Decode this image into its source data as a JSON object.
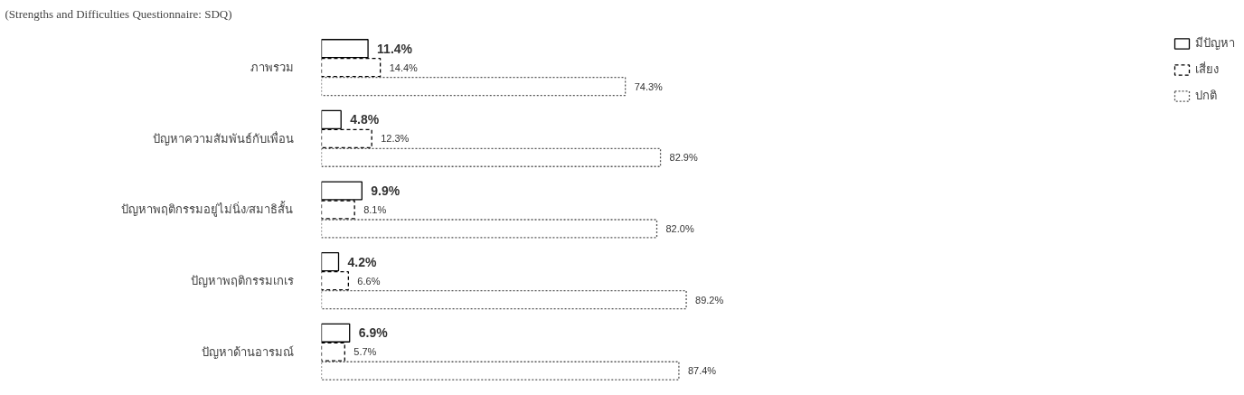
{
  "chart_data": {
    "type": "bar",
    "orientation": "horizontal",
    "title": "(Strengths and Difficulties  Questionnaire: SDQ)",
    "categories": [
      "ภาพรวม",
      "ปัญหาความสัมพันธ์กับเพื่อน",
      "ปัญหาพฤติกรรมอยู่ไม่นิ่ง/สมาธิสั้น",
      "ปัญหาพฤติกรรมเกเร",
      "ปัญหาด้านอารมณ์"
    ],
    "series": [
      {
        "name": "มีปัญหา",
        "color": "#000000",
        "line_style": "solid",
        "values": [
          11.4,
          4.8,
          9.9,
          4.2,
          6.9
        ],
        "value_labels": [
          "11.4%",
          "4.8%",
          "9.9%",
          "4.2%",
          "6.9%"
        ]
      },
      {
        "name": "เสี่ยง",
        "color": "#000000",
        "line_style": "dashed",
        "values": [
          14.4,
          12.3,
          8.1,
          6.6,
          5.7
        ],
        "value_labels": [
          "14.4%",
          "12.3%",
          "8.1%",
          "6.6%",
          "5.7%"
        ]
      },
      {
        "name": "ปกติ",
        "color": "#555555",
        "line_style": "dotted",
        "values": [
          74.3,
          82.9,
          82.0,
          89.2,
          87.4
        ],
        "value_labels": [
          "74.3%",
          "82.9%",
          "82.0%",
          "89.2%",
          "87.4%"
        ]
      }
    ],
    "legend": "top right",
    "grid": false
  }
}
